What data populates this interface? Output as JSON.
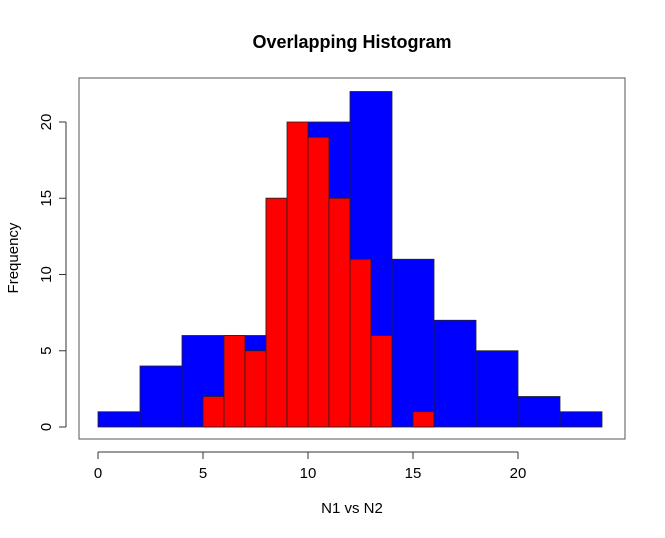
{
  "chart_data": {
    "type": "bar",
    "title": "Overlapping Histogram",
    "xlabel": "N1 vs N2",
    "ylabel": "Frequency",
    "xlim": [
      -1,
      25
    ],
    "ylim": [
      0,
      22
    ],
    "x_ticks": [
      0,
      5,
      10,
      15,
      20
    ],
    "y_ticks": [
      0,
      5,
      10,
      15,
      20
    ],
    "series": [
      {
        "color": "#0000ff",
        "bin_width": 2,
        "bin_starts": [
          0,
          2,
          4,
          6,
          8,
          10,
          12,
          14,
          16,
          18,
          20,
          22
        ],
        "values": [
          1,
          4,
          6,
          6,
          15,
          20,
          22,
          11,
          7,
          5,
          2,
          1
        ]
      },
      {
        "color": "#ff0000",
        "bin_width": 1,
        "bin_starts": [
          5,
          6,
          7,
          8,
          9,
          10,
          11,
          12,
          13,
          14,
          15
        ],
        "values": [
          2,
          6,
          5,
          15,
          20,
          19,
          15,
          11,
          6,
          0,
          1
        ]
      }
    ]
  }
}
